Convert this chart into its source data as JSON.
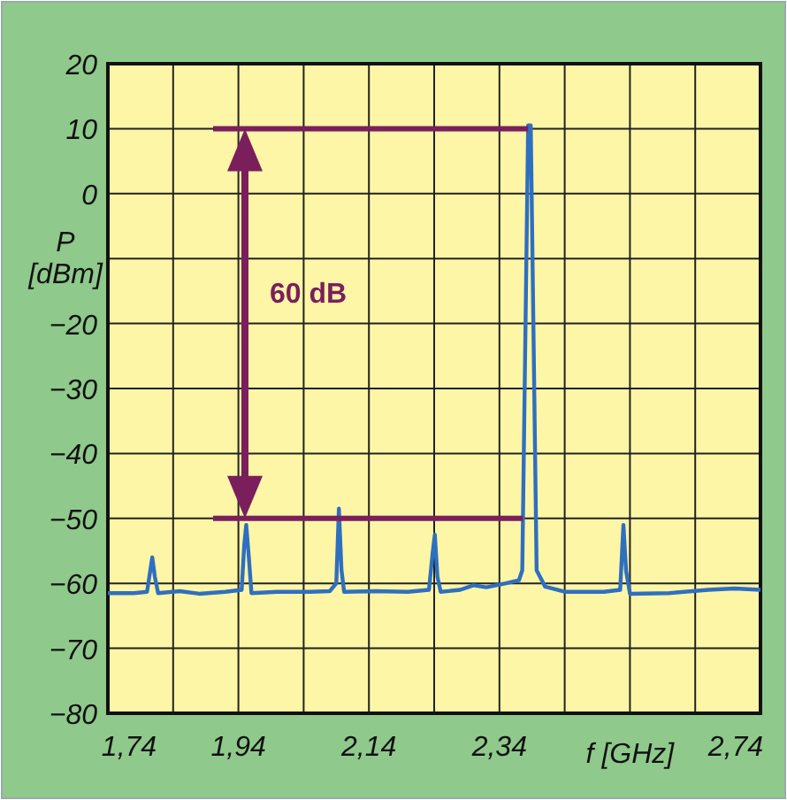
{
  "chart_data": {
    "type": "line",
    "xlabel": "f [GHz]",
    "ylabel": "P [dBm]",
    "x": [
      1.74,
      1.78,
      1.8,
      1.805,
      1.808,
      1.812,
      1.817,
      1.85,
      1.88,
      1.92,
      1.945,
      1.949,
      1.952,
      1.956,
      1.96,
      2.0,
      2.05,
      2.08,
      2.09,
      2.094,
      2.098,
      2.102,
      2.15,
      2.2,
      2.232,
      2.238,
      2.241,
      2.245,
      2.25,
      2.28,
      2.3,
      2.32,
      2.35,
      2.37,
      2.375,
      2.38,
      2.384,
      2.388,
      2.392,
      2.397,
      2.41,
      2.44,
      2.5,
      2.525,
      2.53,
      2.534,
      2.54,
      2.6,
      2.66,
      2.7,
      2.74
    ],
    "series": [
      {
        "color": "#2f6fc0",
        "values": [
          -61.5,
          -61.5,
          -61.3,
          -58,
          -56,
          -59,
          -61.5,
          -61.2,
          -61.6,
          -61.3,
          -61,
          -54,
          -51,
          -56,
          -61.5,
          -61.3,
          -61.3,
          -61.2,
          -60,
          -48.5,
          -58,
          -61.3,
          -61.2,
          -61.3,
          -61,
          -55,
          -52.5,
          -59,
          -61.3,
          -61,
          -60.3,
          -60.6,
          -60,
          -59.5,
          -58,
          -20,
          10.5,
          10.5,
          -20,
          -58,
          -60.5,
          -61.3,
          -61.3,
          -61,
          -51,
          -58,
          -61.6,
          -61.5,
          -61,
          -60.8,
          -61
        ]
      }
    ],
    "xlim": [
      1.74,
      2.74
    ],
    "xticks": [
      {
        "value": 1.74,
        "label": "1,74"
      },
      {
        "value": 1.84,
        "label": null
      },
      {
        "value": 1.94,
        "label": "1,94"
      },
      {
        "value": 2.04,
        "label": null
      },
      {
        "value": 2.14,
        "label": "2,14"
      },
      {
        "value": 2.24,
        "label": null
      },
      {
        "value": 2.34,
        "label": "2,34"
      },
      {
        "value": 2.44,
        "label": null
      },
      {
        "value": 2.54,
        "label": null
      },
      {
        "value": 2.64,
        "label": null
      },
      {
        "value": 2.74,
        "label": "2,74"
      }
    ],
    "ylim": [
      -80,
      20
    ],
    "yticks": [
      20,
      10,
      0,
      {
        "value": -10,
        "label": null
      },
      -20,
      -30,
      -40,
      -50,
      -60,
      -70,
      -80
    ],
    "grid": true,
    "line_style": "solid",
    "ref_lines": [
      {
        "axis": "y",
        "value": 10,
        "color": "#7a1f5c"
      },
      {
        "axis": "y",
        "value": -50,
        "color": "#7a1f5c"
      }
    ],
    "annotations": [
      "60 dB"
    ]
  }
}
